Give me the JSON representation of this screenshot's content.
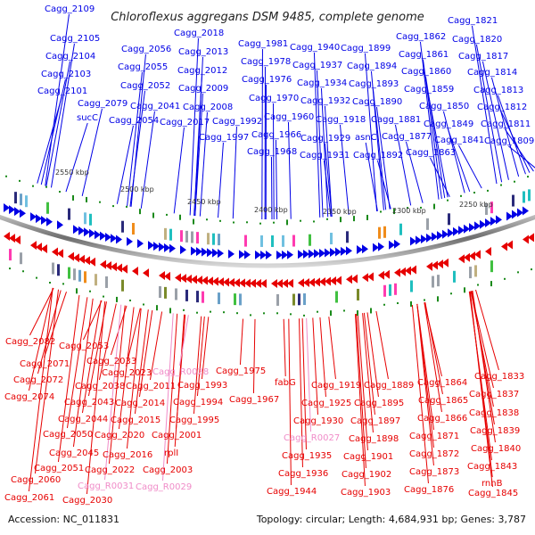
{
  "title": "Chloroflexus aggregans DSM 9485, complete genome",
  "footer": {
    "accession": "Accession: NC_011831",
    "summary": "Topology: circular; Length: 4,684,931 bp; Genes: 3,787"
  },
  "colors": {
    "forward": "#0000e6",
    "reverse": "#e60000",
    "rna": "#f08cc8",
    "backbone": "#888888",
    "gc_marker": "#1a8a1a"
  },
  "ticks": [
    {
      "label": "2550 kbp",
      "kbp": 2550
    },
    {
      "label": "2500 kbp",
      "kbp": 2500
    },
    {
      "label": "2450 kbp",
      "kbp": 2450
    },
    {
      "label": "2400 kbp",
      "kbp": 2400
    },
    {
      "label": "2350 kbp",
      "kbp": 2350
    },
    {
      "label": "2300 kbp",
      "kbp": 2300
    },
    {
      "label": "2250 kbp",
      "kbp": 2250
    }
  ],
  "forward_labels": [
    "Cagg_2109",
    "Cagg_2105",
    "Cagg_2104",
    "Cagg_2103",
    "Cagg_2101",
    "Cagg_2079",
    "sucC",
    "Cagg_2056",
    "Cagg_2055",
    "Cagg_2052",
    "Cagg_2041",
    "Cagg_2054",
    "Cagg_2018",
    "Cagg_2013",
    "Cagg_2012",
    "Cagg_2009",
    "Cagg_2008",
    "Cagg_2017",
    "Cagg_1992",
    "Cagg_1997",
    "Cagg_1981",
    "Cagg_1978",
    "Cagg_1976",
    "Cagg_1970",
    "Cagg_1960",
    "Cagg_1966",
    "Cagg_1968",
    "Cagg_1940",
    "Cagg_1937",
    "Cagg_1934",
    "Cagg_1932",
    "Cagg_1918",
    "Cagg_1929",
    "Cagg_1931",
    "Cagg_1899",
    "Cagg_1894",
    "Cagg_1893",
    "Cagg_1890",
    "Cagg_1881",
    "asnC",
    "Cagg_1892",
    "Cagg_1877",
    "Cagg_1862",
    "Cagg_1861",
    "Cagg_1860",
    "Cagg_1859",
    "Cagg_1850",
    "Cagg_1849",
    "Cagg_1841",
    "Cagg_1863",
    "Cagg_1821",
    "Cagg_1820",
    "Cagg_1817",
    "Cagg_1814",
    "Cagg_1813",
    "Cagg_1812",
    "Cagg_1811",
    "Cagg_1809"
  ],
  "reverse_labels": [
    "Cagg_2082",
    "Cagg_2071",
    "Cagg_2072",
    "Cagg_2074",
    "Cagg_2053",
    "Cagg_2033",
    "Cagg_2023",
    "Cagg_2038",
    "Cagg_2043",
    "Cagg_2044",
    "Cagg_2050",
    "Cagg_2045",
    "Cagg_2051",
    "Cagg_2060",
    "Cagg_2061",
    "Cagg_2011",
    "Cagg_2014",
    "Cagg_2015",
    "Cagg_2020",
    "Cagg_2016",
    "Cagg_2022",
    "Cagg_2030",
    "Cagg_1993",
    "Cagg_1994",
    "Cagg_1995",
    "Cagg_2001",
    "rplI",
    "Cagg_2003",
    "Cagg_1975",
    "Cagg_1967",
    "fabG",
    "Cagg_1919",
    "Cagg_1925",
    "Cagg_1930",
    "Cagg_1935",
    "Cagg_1936",
    "Cagg_1944",
    "Cagg_1889",
    "Cagg_1895",
    "Cagg_1897",
    "Cagg_1898",
    "Cagg_1901",
    "Cagg_1902",
    "Cagg_1903",
    "Cagg_1864",
    "Cagg_1865",
    "Cagg_1866",
    "Cagg_1871",
    "Cagg_1872",
    "Cagg_1873",
    "Cagg_1876",
    "Cagg_1833",
    "Cagg_1837",
    "Cagg_1838",
    "Cagg_1839",
    "Cagg_1840",
    "Cagg_1843",
    "rnhB",
    "Cagg_1845"
  ],
  "rna_labels": [
    "Cagg_R0028",
    "Cagg_R0031",
    "Cagg_R0029",
    "Cagg_R0027"
  ]
}
